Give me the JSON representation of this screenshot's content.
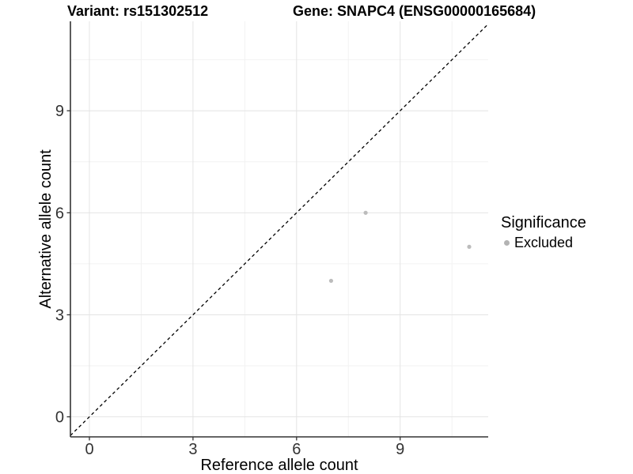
{
  "chart_data": {
    "type": "scatter",
    "titles": {
      "left": "Variant: rs151302512",
      "right": "Gene: SNAPC4 (ENSG00000165684)"
    },
    "xlabel": "Reference allele count",
    "ylabel": "Alternative allele count",
    "xlim": [
      -0.55,
      11.55
    ],
    "ylim": [
      -0.59,
      11.63
    ],
    "xticks": [
      0,
      3,
      6,
      9
    ],
    "yticks": [
      0,
      3,
      6,
      9
    ],
    "xminor": [
      1.5,
      4.5,
      7.5,
      10.5
    ],
    "yminor": [
      1.5,
      4.5,
      7.5,
      10.5
    ],
    "grid": "major+minor",
    "identity_line": {
      "slope": 1,
      "intercept": 0,
      "style": "dashed",
      "color": "#000000"
    },
    "series": [
      {
        "name": "Excluded",
        "color": "#bcbcbc",
        "point_radius": 2.6,
        "points": [
          [
            7,
            4
          ],
          [
            8,
            6
          ],
          [
            11,
            5
          ]
        ]
      }
    ],
    "legend": {
      "position": "right",
      "title": "Significance",
      "items": [
        {
          "label": "Excluded",
          "swatch_color": "#b3b3b3"
        }
      ]
    },
    "colors": {
      "background": "#ffffff",
      "grid_major": "#e4e4e4",
      "grid_minor": "#f2f2f2",
      "axis_line": "#333333",
      "tick_text": "#333333",
      "title_text": "#000000"
    }
  }
}
